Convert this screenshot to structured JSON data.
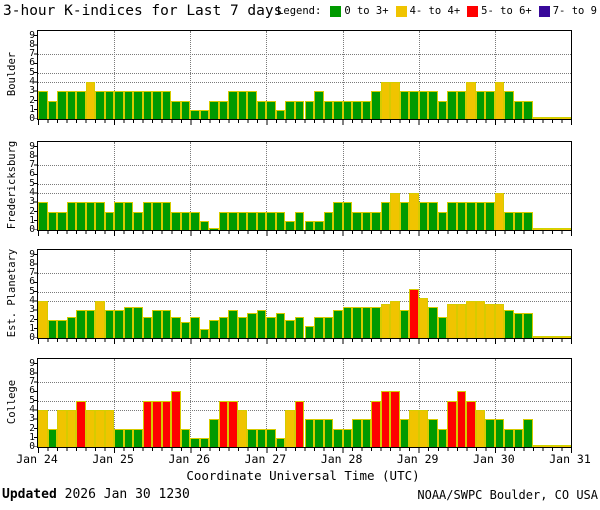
{
  "title": "3-hour K-indices for Last 7 days",
  "legend": {
    "label": "Legend:",
    "items": [
      {
        "label": "0 to 3+",
        "color": "#009a00"
      },
      {
        "label": "4- to 4+",
        "color": "#f0c400"
      },
      {
        "label": "5- to 6+",
        "color": "#ff0000"
      },
      {
        "label": "7- to 9",
        "color": "#38099a"
      }
    ]
  },
  "colors": {
    "green": "#009a00",
    "yellow": "#f0c400",
    "red": "#ff0000",
    "purple": "#38099a",
    "no_data_stub": "#f0c400",
    "grid": "#7a7a7a"
  },
  "footer": {
    "updated_label": "Updated",
    "updated_value": "2026 Jan 30 1230",
    "credit": "NOAA/SWPC Boulder, CO USA"
  },
  "chart_data": {
    "type": "bar",
    "title": "3-hour K-indices for Last 7 days",
    "x": {
      "days": [
        "Jan 24",
        "Jan 25",
        "Jan 26",
        "Jan 27",
        "Jan 28",
        "Jan 29",
        "Jan 30",
        "Jan 31"
      ],
      "slots_per_day": 8,
      "slot_hours": 3,
      "axis_title": "Coordinate Universal Time (UTC)"
    },
    "y": {
      "min": 0,
      "max": 9,
      "ticks": [
        0,
        1,
        2,
        3,
        4,
        5,
        6,
        7,
        8,
        9
      ],
      "dotted_gridlines": [
        4,
        5,
        7
      ]
    },
    "color_thresholds": [
      {
        "range": "0 to 3+",
        "max_exclusive": 3.67,
        "color_key": "green"
      },
      {
        "range": "4- to 4+",
        "max_exclusive": 4.67,
        "color_key": "yellow"
      },
      {
        "range": "5- to 6+",
        "max_exclusive": 6.67,
        "color_key": "red"
      },
      {
        "range": "7- to 9",
        "max_exclusive": 9.5,
        "color_key": "purple"
      }
    ],
    "no_data_trailing_slots": 4,
    "panels": [
      {
        "station": "Boulder",
        "values": [
          3,
          2,
          3,
          3,
          3,
          4,
          3,
          3,
          3,
          3,
          3,
          3,
          3,
          3,
          2,
          2,
          1,
          1,
          2,
          2,
          3,
          3,
          3,
          2,
          2,
          1,
          2,
          2,
          2,
          3,
          2,
          2,
          2,
          2,
          2,
          3,
          4,
          4,
          3,
          3,
          3,
          3,
          2,
          3,
          3,
          4,
          3,
          3,
          4,
          3,
          2,
          2
        ]
      },
      {
        "station": "Fredericksburg",
        "values": [
          3,
          2,
          2,
          3,
          3,
          3,
          3,
          2,
          3,
          3,
          2,
          3,
          3,
          3,
          2,
          2,
          2,
          1,
          0,
          2,
          2,
          2,
          2,
          2,
          2,
          2,
          1,
          2,
          1,
          1,
          2,
          3,
          3,
          2,
          2,
          2,
          3,
          4,
          3,
          4,
          3,
          3,
          2,
          3,
          3,
          3,
          3,
          3,
          4,
          2,
          2,
          2
        ]
      },
      {
        "station": "Est. Planetary",
        "values": [
          4,
          2,
          2,
          2.3,
          3,
          3,
          4,
          3,
          3,
          3.3,
          3.3,
          2.3,
          3,
          3,
          2.3,
          1.7,
          2.3,
          1,
          2,
          2.3,
          3,
          2.3,
          2.7,
          3,
          2.3,
          2.7,
          2,
          2.3,
          1.3,
          2.3,
          2.3,
          3,
          3.3,
          3.3,
          3.3,
          3.3,
          3.7,
          4,
          3,
          5.3,
          4.3,
          3.3,
          2.3,
          3.7,
          3.7,
          4,
          4,
          3.7,
          3.7,
          3,
          2.7,
          2.7
        ]
      },
      {
        "station": "College",
        "values": [
          4,
          2,
          4,
          4,
          5,
          4,
          4,
          4,
          2,
          2,
          2,
          5,
          5,
          5,
          6,
          2,
          1,
          1,
          3,
          5,
          5,
          4,
          2,
          2,
          2,
          1,
          4,
          5,
          3,
          3,
          3,
          2,
          2,
          3,
          3,
          5,
          6,
          6,
          3,
          4,
          4,
          3,
          2,
          5,
          6,
          5,
          4,
          3,
          3,
          2,
          2,
          3
        ]
      }
    ]
  }
}
